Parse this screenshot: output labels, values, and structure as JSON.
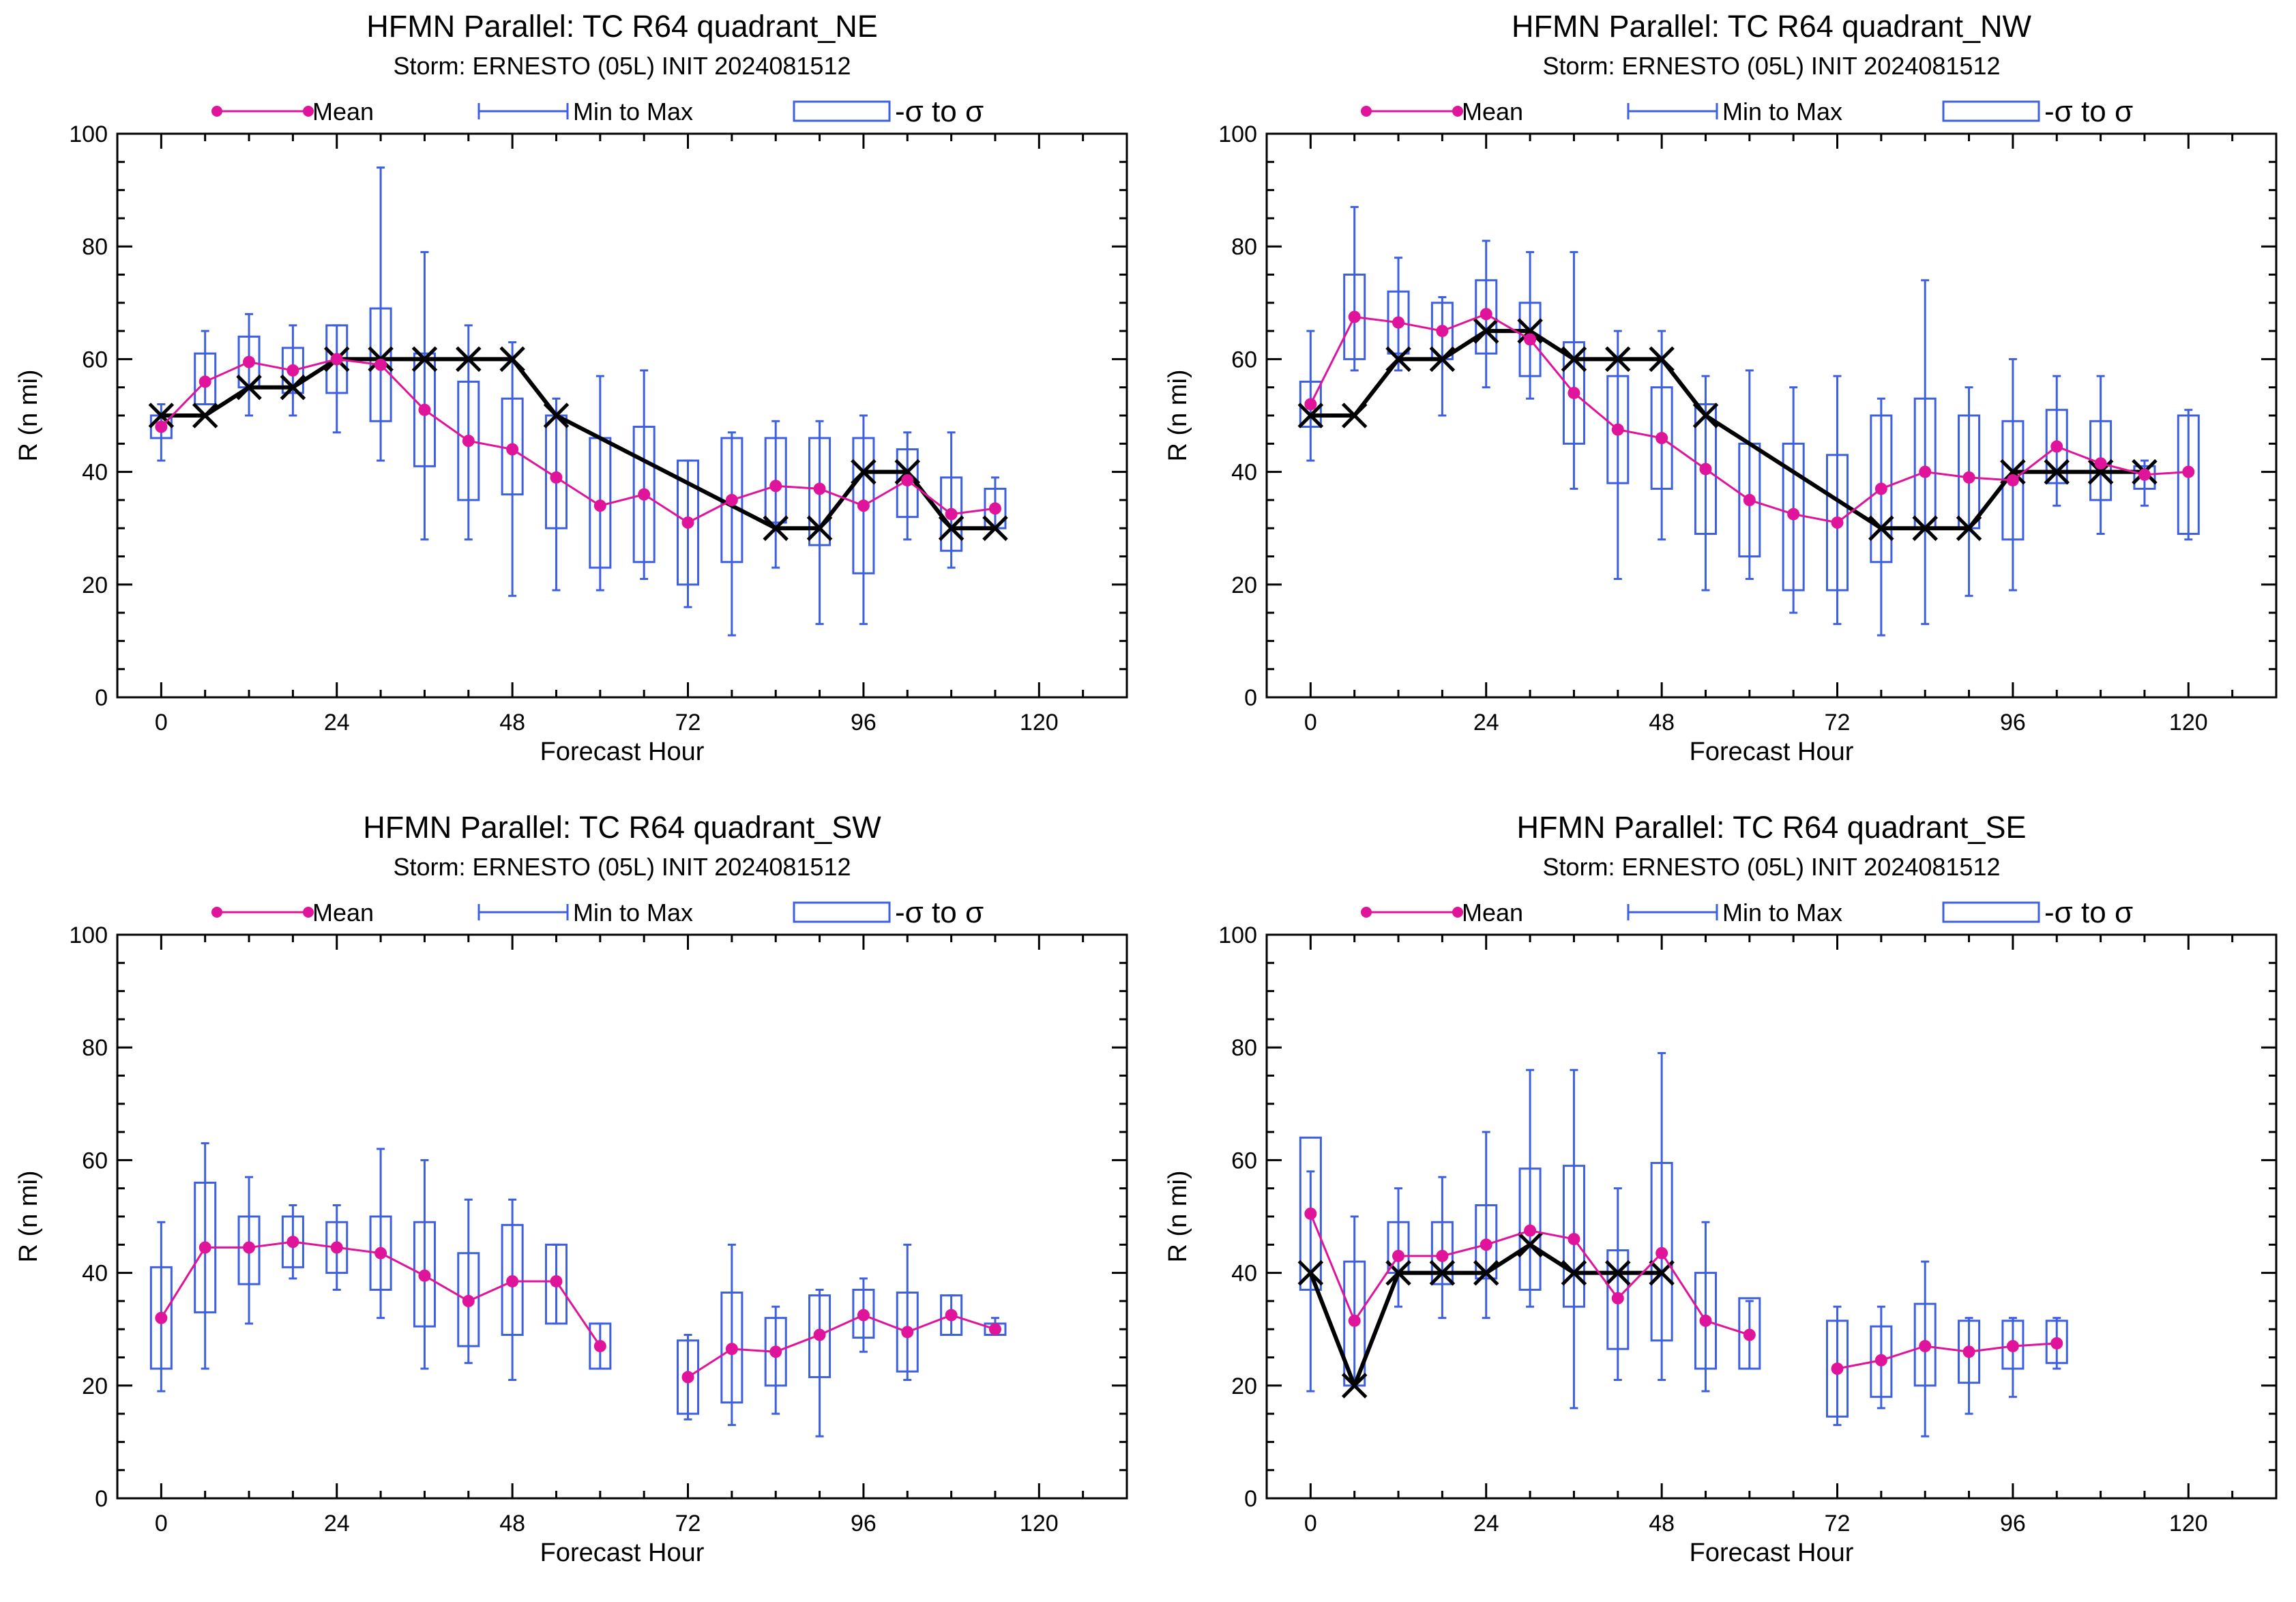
{
  "chart_data": [
    {
      "type": "box",
      "title": "HFMN Parallel: TC  R64 quadrant_NE",
      "subtitle": "Storm: ERNESTO (05L) INIT 2024081512",
      "xlabel": "Forecast Hour",
      "ylabel": "R (n mi)",
      "xlim": [
        -6,
        132
      ],
      "ylim": [
        0,
        100
      ],
      "xticks": [
        0,
        24,
        48,
        72,
        96,
        120
      ],
      "yticks": [
        0,
        20,
        40,
        60,
        80,
        100
      ],
      "legend": [
        "Mean",
        "Min to Max",
        "-σ to σ"
      ],
      "legend_placement": "top",
      "hours": [
        0,
        6,
        12,
        18,
        24,
        30,
        36,
        42,
        48,
        54,
        60,
        66,
        72,
        78,
        84,
        90,
        96,
        102,
        108,
        114
      ],
      "mean": [
        48,
        56,
        59.5,
        58,
        60,
        59,
        51,
        45.5,
        44,
        39,
        34,
        36,
        31,
        35,
        37.5,
        37,
        34,
        38.5,
        32.5,
        33.5
      ],
      "min": [
        42,
        52,
        50,
        50,
        47,
        42,
        28,
        28,
        18,
        19,
        19,
        21,
        16,
        11,
        23,
        13,
        13,
        28,
        23,
        30
      ],
      "max": [
        52,
        65,
        68,
        66,
        66,
        94,
        79,
        66,
        63,
        53,
        57,
        58,
        42,
        47,
        49,
        49,
        50,
        47,
        47,
        39
      ],
      "sigma_low": [
        46,
        52,
        55,
        54,
        54,
        49,
        41,
        35,
        36,
        30,
        23,
        24,
        20,
        24,
        31,
        27,
        22,
        32,
        26,
        30
      ],
      "sigma_high": [
        50,
        61,
        64,
        62,
        66,
        69,
        61,
        56,
        53,
        50,
        46,
        48,
        42,
        46,
        46,
        46,
        46,
        44,
        39,
        37
      ],
      "best_track_hours": [
        0,
        6,
        12,
        18,
        24,
        30,
        36,
        42,
        48,
        54,
        84,
        90,
        96,
        102,
        108,
        114
      ],
      "best_track": [
        50,
        50,
        55,
        55,
        60,
        60,
        60,
        60,
        60,
        50,
        30,
        30,
        40,
        40,
        30,
        30
      ]
    },
    {
      "type": "box",
      "title": "HFMN Parallel: TC  R64 quadrant_NW",
      "subtitle": "Storm: ERNESTO (05L) INIT 2024081512",
      "xlabel": "Forecast Hour",
      "ylabel": "R (n mi)",
      "xlim": [
        -6,
        132
      ],
      "ylim": [
        0,
        100
      ],
      "xticks": [
        0,
        24,
        48,
        72,
        96,
        120
      ],
      "yticks": [
        0,
        20,
        40,
        60,
        80,
        100
      ],
      "legend": [
        "Mean",
        "Min to Max",
        "-σ to σ"
      ],
      "legend_placement": "top",
      "hours": [
        0,
        6,
        12,
        18,
        24,
        30,
        36,
        42,
        48,
        54,
        60,
        66,
        72,
        78,
        84,
        90,
        96,
        102,
        108,
        114,
        120
      ],
      "mean": [
        52,
        67.5,
        66.5,
        65,
        68,
        63.5,
        54,
        47.5,
        46,
        40.5,
        35,
        32.5,
        31,
        37,
        40,
        39,
        38.5,
        44.5,
        41.5,
        39.5,
        40
      ],
      "min": [
        42,
        58,
        58,
        50,
        55,
        53,
        37,
        21,
        28,
        19,
        21,
        15,
        13,
        11,
        13,
        18,
        19,
        34,
        29,
        34,
        28
      ],
      "max": [
        65,
        87,
        78,
        71,
        81,
        79,
        79,
        65,
        65,
        57,
        58,
        55,
        57,
        53,
        74,
        55,
        60,
        57,
        57,
        42,
        51
      ],
      "sigma_low": [
        48,
        60,
        61,
        60,
        61,
        57,
        45,
        38,
        37,
        29,
        25,
        19,
        19,
        24,
        30,
        30,
        28,
        38,
        35,
        37,
        29
      ],
      "sigma_high": [
        56,
        75,
        72,
        70,
        74,
        70,
        63,
        57,
        55,
        52,
        45,
        45,
        43,
        50,
        53,
        50,
        49,
        51,
        49,
        41,
        50
      ],
      "best_track_hours": [
        0,
        6,
        12,
        18,
        24,
        30,
        36,
        42,
        48,
        54,
        78,
        84,
        90,
        96,
        102,
        108,
        114
      ],
      "best_track": [
        50,
        50,
        60,
        60,
        65,
        65,
        60,
        60,
        60,
        50,
        30,
        30,
        30,
        40,
        40,
        40,
        40
      ]
    },
    {
      "type": "box",
      "title": "HFMN Parallel: TC  R64 quadrant_SW",
      "subtitle": "Storm: ERNESTO (05L) INIT 2024081512",
      "xlabel": "Forecast Hour",
      "ylabel": "R (n mi)",
      "xlim": [
        -6,
        132
      ],
      "ylim": [
        0,
        100
      ],
      "xticks": [
        0,
        24,
        48,
        72,
        96,
        120
      ],
      "yticks": [
        0,
        20,
        40,
        60,
        80,
        100
      ],
      "legend": [
        "Mean",
        "Min to Max",
        "-σ to σ"
      ],
      "legend_placement": "top",
      "hours": [
        0,
        6,
        12,
        18,
        24,
        30,
        36,
        42,
        48,
        54,
        60,
        72,
        78,
        84,
        90,
        96,
        102,
        108,
        114
      ],
      "mean": [
        32,
        44.5,
        44.5,
        45.5,
        44.5,
        43.5,
        39.5,
        35,
        38.5,
        38.5,
        27,
        21.5,
        26.5,
        26,
        29,
        32.5,
        29.5,
        32.5,
        30
      ],
      "min": [
        19,
        23,
        31,
        39,
        37,
        32,
        23,
        24,
        21,
        31,
        23,
        14,
        13,
        15,
        11,
        26,
        21,
        29,
        29
      ],
      "max": [
        49,
        63,
        57,
        52,
        52,
        62,
        60,
        53,
        53,
        45,
        31,
        29,
        45,
        34,
        37,
        39,
        45,
        36,
        32
      ],
      "sigma_low": [
        23,
        33,
        38,
        41,
        40,
        37,
        30.5,
        27,
        29,
        31,
        23,
        15,
        17,
        20,
        21.5,
        28.5,
        22.5,
        29,
        29
      ],
      "sigma_high": [
        41,
        56,
        50,
        50,
        49,
        50,
        49,
        43.5,
        48.5,
        45,
        31,
        28,
        36.5,
        32,
        36,
        37,
        36.5,
        36,
        31
      ]
    },
    {
      "type": "box",
      "title": "HFMN Parallel: TC  R64 quadrant_SE",
      "subtitle": "Storm: ERNESTO (05L) INIT 2024081512",
      "xlabel": "Forecast Hour",
      "ylabel": "R (n mi)",
      "xlim": [
        -6,
        132
      ],
      "ylim": [
        0,
        100
      ],
      "xticks": [
        0,
        24,
        48,
        72,
        96,
        120
      ],
      "yticks": [
        0,
        20,
        40,
        60,
        80,
        100
      ],
      "legend": [
        "Mean",
        "Min to Max",
        "-σ to σ"
      ],
      "legend_placement": "top",
      "hours": [
        0,
        6,
        12,
        18,
        24,
        30,
        36,
        42,
        48,
        54,
        60,
        72,
        78,
        84,
        90,
        96,
        102
      ],
      "mean": [
        50.5,
        31.5,
        43,
        43,
        45,
        47.5,
        46,
        35.5,
        43.5,
        31.5,
        29,
        23,
        24.5,
        27,
        26,
        27,
        27.5
      ],
      "min": [
        19,
        20,
        34,
        32,
        32,
        34,
        16,
        21,
        21,
        19,
        23,
        13,
        16,
        11,
        15,
        18,
        23
      ],
      "max": [
        58,
        50,
        55,
        57,
        65,
        76,
        76,
        55,
        79,
        49,
        35,
        34,
        34,
        42,
        32,
        32,
        32
      ],
      "sigma_low": [
        37,
        20,
        40,
        38,
        39,
        37,
        34,
        26.5,
        28,
        23,
        23,
        14.5,
        18,
        20,
        20.5,
        23,
        24
      ],
      "sigma_high": [
        64,
        42,
        49,
        49,
        52,
        58.5,
        59,
        44,
        59.5,
        40,
        35.5,
        31.5,
        30.5,
        34.5,
        31.5,
        31.5,
        31.5
      ],
      "best_track_hours": [
        0,
        6,
        12,
        18,
        24,
        30,
        36,
        42,
        48
      ],
      "best_track": [
        40,
        20,
        40,
        40,
        40,
        45,
        40,
        40,
        40
      ]
    }
  ],
  "colors": {
    "mean": "#e0139b",
    "box": "#3d5fe0",
    "best_track": "#000000",
    "axes": "#000000",
    "background": "#ffffff"
  }
}
